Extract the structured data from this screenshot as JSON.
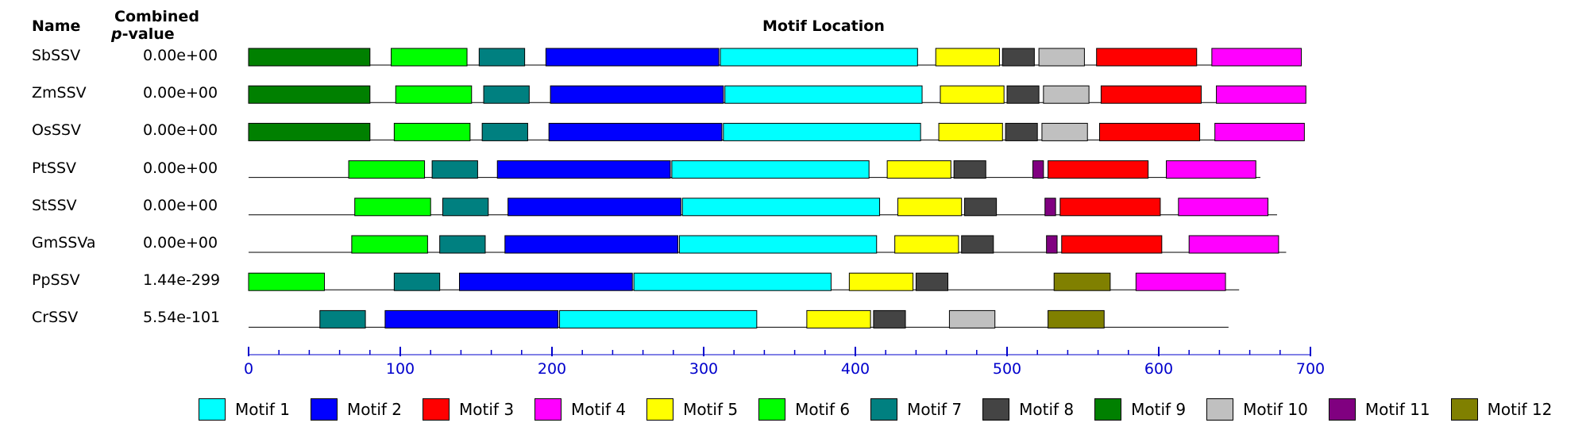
{
  "header": {
    "name_label": "Name",
    "pvalue_label_1": "Combined",
    "pvalue_label_2_italic": "p",
    "pvalue_label_2_rest": "-value",
    "location_label": "Motif Location"
  },
  "motif_colors": {
    "1": "#00ffff",
    "2": "#0000ff",
    "3": "#ff0000",
    "4": "#ff00ff",
    "5": "#ffff00",
    "6": "#00ff00",
    "7": "#008080",
    "8": "#444444",
    "9": "#008000",
    "10": "#c0c0c0",
    "11": "#800080",
    "12": "#808000"
  },
  "legend": [
    {
      "motif": "1",
      "label": "Motif 1"
    },
    {
      "motif": "2",
      "label": "Motif 2"
    },
    {
      "motif": "3",
      "label": "Motif 3"
    },
    {
      "motif": "4",
      "label": "Motif 4"
    },
    {
      "motif": "5",
      "label": "Motif 5"
    },
    {
      "motif": "6",
      "label": "Motif 6"
    },
    {
      "motif": "7",
      "label": "Motif 7"
    },
    {
      "motif": "8",
      "label": "Motif 8"
    },
    {
      "motif": "9",
      "label": "Motif 9"
    },
    {
      "motif": "10",
      "label": "Motif 10"
    },
    {
      "motif": "11",
      "label": "Motif 11"
    },
    {
      "motif": "12",
      "label": "Motif 12"
    }
  ],
  "axis": {
    "min": 0,
    "max": 700,
    "major_ticks": [
      0,
      100,
      200,
      300,
      400,
      500,
      600,
      700
    ],
    "minor_step": 20,
    "color": "#0000cc"
  },
  "rows": [
    {
      "name": "SbSSV",
      "pvalue": "0.00e+00",
      "length": 690,
      "motifs": [
        {
          "m": "9",
          "s": 0,
          "e": 80
        },
        {
          "m": "6",
          "s": 94,
          "e": 144
        },
        {
          "m": "7",
          "s": 152,
          "e": 182
        },
        {
          "m": "2",
          "s": 196,
          "e": 310
        },
        {
          "m": "1",
          "s": 311,
          "e": 441
        },
        {
          "m": "5",
          "s": 453,
          "e": 495
        },
        {
          "m": "8",
          "s": 497,
          "e": 518
        },
        {
          "m": "10",
          "s": 521,
          "e": 551
        },
        {
          "m": "3",
          "s": 559,
          "e": 625
        },
        {
          "m": "4",
          "s": 635,
          "e": 694
        }
      ]
    },
    {
      "name": "ZmSSV",
      "pvalue": "0.00e+00",
      "length": 693,
      "motifs": [
        {
          "m": "9",
          "s": 0,
          "e": 80
        },
        {
          "m": "6",
          "s": 97,
          "e": 147
        },
        {
          "m": "7",
          "s": 155,
          "e": 185
        },
        {
          "m": "2",
          "s": 199,
          "e": 313
        },
        {
          "m": "1",
          "s": 314,
          "e": 444
        },
        {
          "m": "5",
          "s": 456,
          "e": 498
        },
        {
          "m": "8",
          "s": 500,
          "e": 521
        },
        {
          "m": "10",
          "s": 524,
          "e": 554
        },
        {
          "m": "3",
          "s": 562,
          "e": 628
        },
        {
          "m": "4",
          "s": 638,
          "e": 697
        }
      ]
    },
    {
      "name": "OsSSV",
      "pvalue": "0.00e+00",
      "length": 691,
      "motifs": [
        {
          "m": "9",
          "s": 0,
          "e": 80
        },
        {
          "m": "6",
          "s": 96,
          "e": 146
        },
        {
          "m": "7",
          "s": 154,
          "e": 184
        },
        {
          "m": "2",
          "s": 198,
          "e": 312
        },
        {
          "m": "1",
          "s": 313,
          "e": 443
        },
        {
          "m": "5",
          "s": 455,
          "e": 497
        },
        {
          "m": "8",
          "s": 499,
          "e": 520
        },
        {
          "m": "10",
          "s": 523,
          "e": 553
        },
        {
          "m": "3",
          "s": 561,
          "e": 627
        },
        {
          "m": "4",
          "s": 637,
          "e": 696
        }
      ]
    },
    {
      "name": "PtSSV",
      "pvalue": "0.00e+00",
      "length": 667,
      "motifs": [
        {
          "m": "6",
          "s": 66,
          "e": 116
        },
        {
          "m": "7",
          "s": 121,
          "e": 151
        },
        {
          "m": "2",
          "s": 164,
          "e": 278
        },
        {
          "m": "1",
          "s": 279,
          "e": 409
        },
        {
          "m": "5",
          "s": 421,
          "e": 463
        },
        {
          "m": "8",
          "s": 465,
          "e": 486
        },
        {
          "m": "11",
          "s": 517,
          "e": 524
        },
        {
          "m": "3",
          "s": 527,
          "e": 593
        },
        {
          "m": "4",
          "s": 605,
          "e": 664
        }
      ]
    },
    {
      "name": "StSSV",
      "pvalue": "0.00e+00",
      "length": 678,
      "motifs": [
        {
          "m": "6",
          "s": 70,
          "e": 120
        },
        {
          "m": "7",
          "s": 128,
          "e": 158
        },
        {
          "m": "2",
          "s": 171,
          "e": 285
        },
        {
          "m": "1",
          "s": 286,
          "e": 416
        },
        {
          "m": "5",
          "s": 428,
          "e": 470
        },
        {
          "m": "8",
          "s": 472,
          "e": 493
        },
        {
          "m": "11",
          "s": 525,
          "e": 532
        },
        {
          "m": "3",
          "s": 535,
          "e": 601
        },
        {
          "m": "4",
          "s": 613,
          "e": 672
        }
      ]
    },
    {
      "name": "GmSSVa",
      "pvalue": "0.00e+00",
      "length": 684,
      "motifs": [
        {
          "m": "6",
          "s": 68,
          "e": 118
        },
        {
          "m": "7",
          "s": 126,
          "e": 156
        },
        {
          "m": "2",
          "s": 169,
          "e": 283
        },
        {
          "m": "1",
          "s": 284,
          "e": 414
        },
        {
          "m": "5",
          "s": 426,
          "e": 468
        },
        {
          "m": "8",
          "s": 470,
          "e": 491
        },
        {
          "m": "11",
          "s": 526,
          "e": 533
        },
        {
          "m": "3",
          "s": 536,
          "e": 602
        },
        {
          "m": "4",
          "s": 620,
          "e": 679
        }
      ]
    },
    {
      "name": "PpSSV",
      "pvalue": "1.44e-299",
      "length": 653,
      "motifs": [
        {
          "m": "6",
          "s": 0,
          "e": 50
        },
        {
          "m": "7",
          "s": 96,
          "e": 126
        },
        {
          "m": "2",
          "s": 139,
          "e": 253
        },
        {
          "m": "1",
          "s": 254,
          "e": 384
        },
        {
          "m": "5",
          "s": 396,
          "e": 438
        },
        {
          "m": "8",
          "s": 440,
          "e": 461
        },
        {
          "m": "12",
          "s": 531,
          "e": 568
        },
        {
          "m": "4",
          "s": 585,
          "e": 644
        }
      ]
    },
    {
      "name": "CrSSV",
      "pvalue": "5.54e-101",
      "length": 646,
      "motifs": [
        {
          "m": "7",
          "s": 47,
          "e": 77
        },
        {
          "m": "2",
          "s": 90,
          "e": 204
        },
        {
          "m": "1",
          "s": 205,
          "e": 335
        },
        {
          "m": "5",
          "s": 368,
          "e": 410
        },
        {
          "m": "8",
          "s": 412,
          "e": 433
        },
        {
          "m": "10",
          "s": 462,
          "e": 492
        },
        {
          "m": "12",
          "s": 527,
          "e": 564
        }
      ]
    }
  ]
}
